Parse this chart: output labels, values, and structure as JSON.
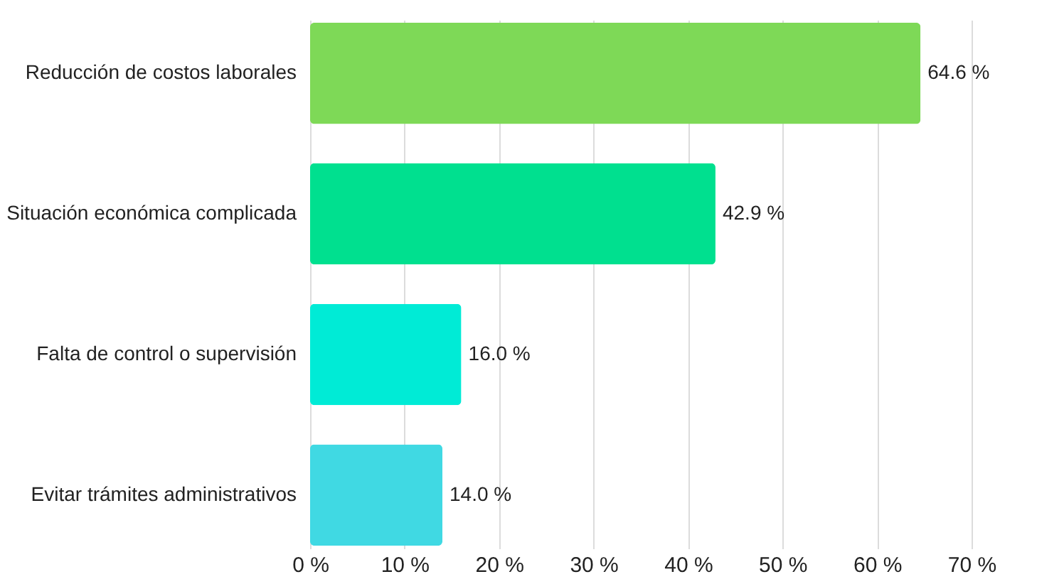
{
  "chart_data": {
    "type": "bar",
    "orientation": "horizontal",
    "categories": [
      "Reducción de costos laborales",
      "Situación económica complicada",
      "Falta de control o supervisión",
      "Evitar trámites administrativos"
    ],
    "values": [
      64.6,
      42.9,
      16.0,
      14.0
    ],
    "colors": [
      "#7ed957",
      "#00e08f",
      "#00ebd6",
      "#40d9e3"
    ],
    "value_labels": [
      "64.6 %",
      "42.9 %",
      "16.0 %",
      "14.0 %"
    ],
    "xlim": [
      0,
      70
    ],
    "xticks": [
      {
        "value": 0,
        "label": "0 %"
      },
      {
        "value": 10,
        "label": "10 %"
      },
      {
        "value": 20,
        "label": "20 %"
      },
      {
        "value": 30,
        "label": "30 %"
      },
      {
        "value": 40,
        "label": "40 %"
      },
      {
        "value": 50,
        "label": "50 %"
      },
      {
        "value": 60,
        "label": "60 %"
      },
      {
        "value": 70,
        "label": "70 %"
      }
    ],
    "grid": "x"
  }
}
